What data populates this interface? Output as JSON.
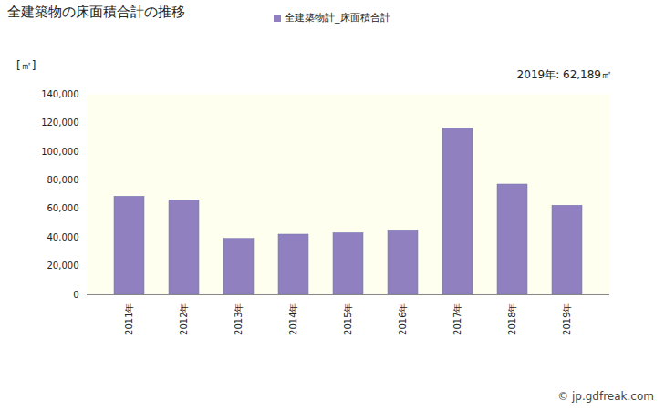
{
  "chart_data": {
    "type": "bar",
    "title": "全建築物の床面積合計の推移",
    "y_label": "[㎡]",
    "annotation": "2019年: 62,189㎡",
    "source": "© jp.gdfreak.com",
    "categories": [
      "2011年",
      "2012年",
      "2013年",
      "2014年",
      "2015年",
      "2016年",
      "2017年",
      "2018年",
      "2019年"
    ],
    "series": [
      {
        "name": "全建築物計_床面積合計",
        "color": "#9080bf",
        "values": [
          68500,
          66000,
          39000,
          42000,
          43000,
          45000,
          116000,
          77000,
          62189
        ]
      }
    ],
    "ylim": [
      0,
      140000
    ],
    "yticks": [
      0,
      {
        "value": 20000,
        "label": "20,000"
      },
      {
        "value": 40000,
        "label": "40,000"
      },
      {
        "value": 60000,
        "label": "60,000"
      },
      {
        "value": 80000,
        "label": "80,000"
      },
      {
        "value": 100000,
        "label": "100,000"
      },
      {
        "value": 120000,
        "label": "120,000"
      },
      {
        "value": 140000,
        "label": "140,000"
      }
    ],
    "grid": false
  }
}
